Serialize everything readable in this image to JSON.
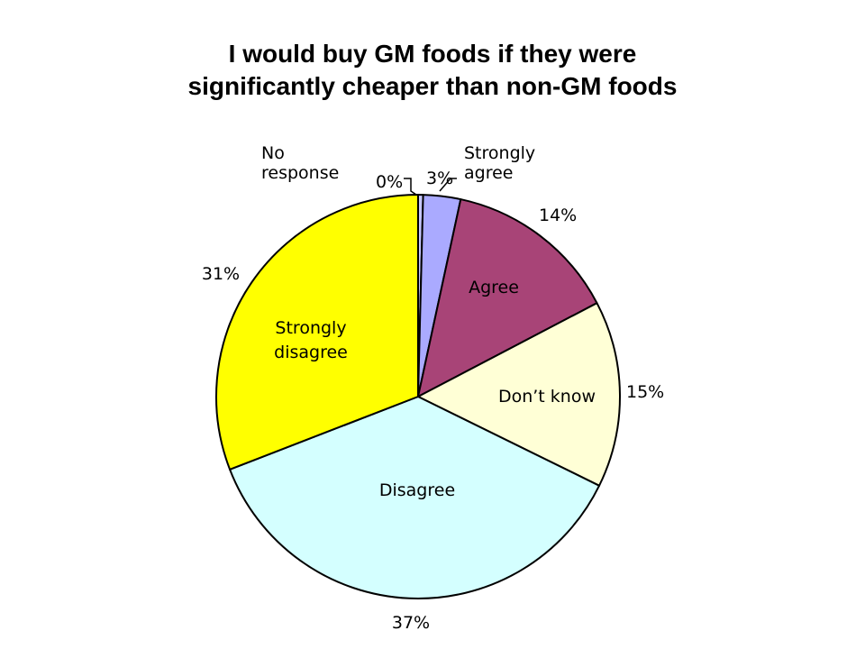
{
  "title_lines": [
    "I would buy GM foods if they were",
    "significantly cheaper than non-GM foods"
  ],
  "chart_data": {
    "type": "pie",
    "title": "I would buy GM foods if they were significantly cheaper than non-GM foods",
    "slices": [
      {
        "category": "No response",
        "category_lines": [
          "No",
          "response"
        ],
        "value": 0.4,
        "value_label": "0%",
        "color": "#c8c8ff"
      },
      {
        "category": "Strongly agree",
        "category_lines": [
          "Strongly",
          "agree"
        ],
        "value": 3,
        "value_label": "3%",
        "color": "#aaaaff"
      },
      {
        "category": "Agree",
        "category_lines": [
          "Agree"
        ],
        "value": 14,
        "value_label": "14%",
        "color": "#a84477"
      },
      {
        "category": "Don't know",
        "category_lines": [
          "Don’t know"
        ],
        "value": 15,
        "value_label": "15%",
        "color": "#ffffd6"
      },
      {
        "category": "Disagree",
        "category_lines": [
          "Disagree"
        ],
        "value": 37,
        "value_label": "37%",
        "color": "#d4ffff"
      },
      {
        "category": "Strongly disagree",
        "category_lines": [
          "Strongly",
          "disagree"
        ],
        "value": 31,
        "value_label": "31%",
        "color": "#ffff00"
      }
    ],
    "start_angle": "12 o'clock",
    "direction": "clockwise",
    "legend": "none (labels on and around slices)"
  }
}
